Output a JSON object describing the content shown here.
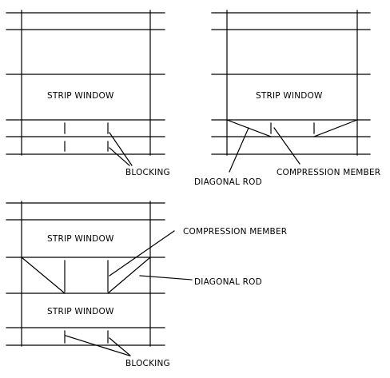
{
  "labels": {
    "strip_window": "STRIP WINDOW",
    "blocking": "BLOCKING",
    "diagonal_rod": "DIAGONAL ROD",
    "compression_member": "COMPRESSION MEMBER"
  }
}
